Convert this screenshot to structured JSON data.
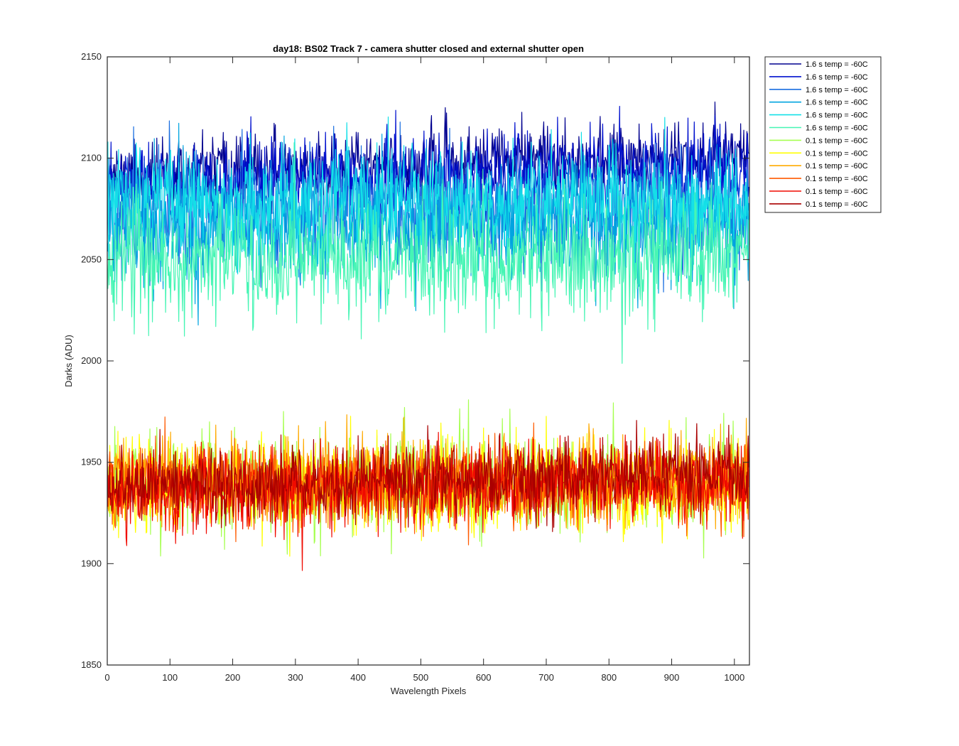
{
  "chart_data": {
    "type": "line",
    "title": "day18: BS02  Track 7 - camera shutter closed and external shutter open",
    "xlabel": "Wavelength Pixels",
    "ylabel": "Darks (ADU)",
    "xlim": [
      0,
      1024
    ],
    "ylim": [
      1850,
      2150
    ],
    "xticks": [
      0,
      100,
      200,
      300,
      400,
      500,
      600,
      700,
      800,
      900,
      1000
    ],
    "yticks": [
      1850,
      1900,
      1950,
      2000,
      2050,
      2100,
      2150
    ],
    "legend_position": "outside-top-right",
    "n_points": 1024,
    "series": [
      {
        "name": "1.6 s temp = -60C",
        "color": "#00008f",
        "mean": 2097,
        "spread": 8,
        "trend": 0.012,
        "seed": 11
      },
      {
        "name": "1.6 s temp = -60C",
        "color": "#0010ce",
        "mean": 2090,
        "spread": 10,
        "trend": 0.008,
        "seed": 23
      },
      {
        "name": "1.6 s temp = -60C",
        "color": "#1a6ee0",
        "mean": 2075,
        "spread": 14,
        "trend": 0.0,
        "seed": 37
      },
      {
        "name": "1.6 s temp = -60C",
        "color": "#00a4e0",
        "mean": 2068,
        "spread": 15,
        "trend": 0.0,
        "seed": 41
      },
      {
        "name": "1.6 s temp = -60C",
        "color": "#14e0e8",
        "mean": 2078,
        "spread": 13,
        "trend": 0.0,
        "seed": 53
      },
      {
        "name": "1.6 s temp = -60C",
        "color": "#46f5b4",
        "mean": 2050,
        "spread": 14,
        "trend": 0.0,
        "seed": 67
      },
      {
        "name": "0.1 s temp = -60C",
        "color": "#a6ff50",
        "mean": 1940,
        "spread": 12,
        "trend": 0.0,
        "seed": 71
      },
      {
        "name": "0.1 s temp = -60C",
        "color": "#ffff00",
        "mean": 1938,
        "spread": 12,
        "trend": 0.0,
        "seed": 83
      },
      {
        "name": "0.1 s temp = -60C",
        "color": "#ffaa00",
        "mean": 1941,
        "spread": 10,
        "trend": 0.0,
        "seed": 97
      },
      {
        "name": "0.1 s temp = -60C",
        "color": "#ff5a00",
        "mean": 1940,
        "spread": 10,
        "trend": 0.0,
        "seed": 101
      },
      {
        "name": "0.1 s temp = -60C",
        "color": "#f00a00",
        "mean": 1938,
        "spread": 10,
        "trend": 0.006,
        "seed": 113
      },
      {
        "name": "0.1 s temp = -60C",
        "color": "#aa0000",
        "mean": 1942,
        "spread": 9,
        "trend": 0.006,
        "seed": 127
      }
    ]
  }
}
